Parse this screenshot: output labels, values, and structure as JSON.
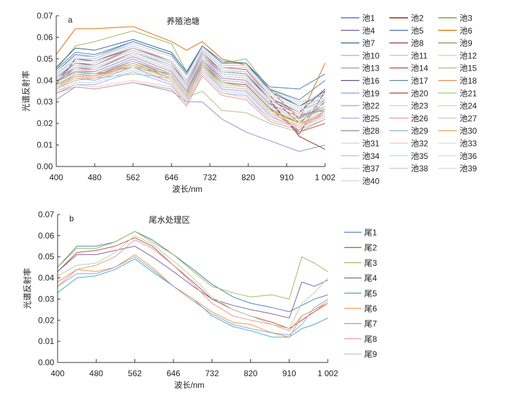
{
  "chart_data": [
    {
      "type": "line",
      "panel_label": "a",
      "title": "养殖池塘",
      "xlabel": "波长/nm",
      "ylabel": "光谱反射率",
      "x_ticks": [
        400,
        480,
        562,
        646,
        732,
        820,
        910,
        1002
      ],
      "x_tick_labels": [
        "400",
        "480",
        "562",
        "646",
        "732",
        "820",
        "910",
        "1 002"
      ],
      "y_ticks": [
        "0.00",
        "0.01",
        "0.02",
        "0.03",
        "0.04",
        "0.05",
        "0.06",
        "0.07"
      ],
      "ylim": [
        0,
        0.07
      ],
      "xlim": [
        400,
        1002
      ],
      "grid": false,
      "legend_placement": "right",
      "x": [
        400,
        440,
        480,
        562,
        646,
        680,
        715,
        760,
        815,
        870,
        940,
        1002
      ],
      "series": [
        {
          "name": "池1",
          "color": "#7F9ACB",
          "values": [
            0.031,
            0.037,
            0.036,
            0.039,
            0.035,
            0.03,
            0.03,
            0.022,
            0.016,
            0.012,
            0.007,
            0.01
          ]
        },
        {
          "name": "池2",
          "color": "#C0504D",
          "values": [
            0.042,
            0.048,
            0.047,
            0.055,
            0.049,
            0.04,
            0.054,
            0.046,
            0.045,
            0.033,
            0.02,
            0.03
          ]
        },
        {
          "name": "池3",
          "color": "#9BBB59",
          "values": [
            0.045,
            0.056,
            0.058,
            0.063,
            0.057,
            0.044,
            0.056,
            0.048,
            0.05,
            0.036,
            0.028,
            0.034
          ]
        },
        {
          "name": "池4",
          "color": "#8064A2",
          "values": [
            0.041,
            0.046,
            0.045,
            0.053,
            0.046,
            0.037,
            0.052,
            0.043,
            0.042,
            0.031,
            0.024,
            0.026
          ]
        },
        {
          "name": "池5",
          "color": "#4A7EBB",
          "values": [
            0.044,
            0.052,
            0.051,
            0.058,
            0.052,
            0.043,
            0.056,
            0.049,
            0.048,
            0.037,
            0.036,
            0.043
          ]
        },
        {
          "name": "池6",
          "color": "#E46C0A",
          "values": [
            0.052,
            0.064,
            0.064,
            0.065,
            0.058,
            0.054,
            0.058,
            0.05,
            0.047,
            0.036,
            0.022,
            0.048
          ]
        },
        {
          "name": "池7",
          "color": "#376092",
          "values": [
            0.046,
            0.055,
            0.054,
            0.059,
            0.053,
            0.044,
            0.056,
            0.048,
            0.048,
            0.035,
            0.028,
            0.035
          ]
        },
        {
          "name": "池8",
          "color": "#953735",
          "values": [
            0.038,
            0.05,
            0.049,
            0.055,
            0.048,
            0.038,
            0.053,
            0.044,
            0.043,
            0.031,
            0.014,
            0.008
          ]
        },
        {
          "name": "池9",
          "color": "#77933C",
          "values": [
            0.04,
            0.044,
            0.043,
            0.046,
            0.043,
            0.034,
            0.047,
            0.039,
            0.038,
            0.027,
            0.02,
            0.03
          ]
        },
        {
          "name": "池10",
          "color": "#B3A2C7",
          "values": [
            0.04,
            0.045,
            0.044,
            0.051,
            0.044,
            0.035,
            0.05,
            0.041,
            0.04,
            0.029,
            0.023,
            0.028
          ]
        },
        {
          "name": "池11",
          "color": "#A9C4DC",
          "values": [
            0.043,
            0.05,
            0.05,
            0.057,
            0.051,
            0.042,
            0.055,
            0.047,
            0.047,
            0.036,
            0.03,
            0.033
          ]
        },
        {
          "name": "池12",
          "color": "#FAC090",
          "values": [
            0.037,
            0.042,
            0.041,
            0.047,
            0.04,
            0.031,
            0.046,
            0.037,
            0.036,
            0.025,
            0.018,
            0.025
          ]
        },
        {
          "name": "池13",
          "color": "#8EA2C9",
          "values": [
            0.039,
            0.044,
            0.043,
            0.05,
            0.043,
            0.034,
            0.049,
            0.04,
            0.039,
            0.028,
            0.022,
            0.031
          ]
        },
        {
          "name": "池14",
          "color": "#B9555A",
          "values": [
            0.038,
            0.043,
            0.042,
            0.049,
            0.042,
            0.033,
            0.048,
            0.039,
            0.038,
            0.027,
            0.016,
            0.02
          ]
        },
        {
          "name": "池15",
          "color": "#A6C48A",
          "values": [
            0.036,
            0.04,
            0.041,
            0.043,
            0.041,
            0.032,
            0.035,
            0.026,
            0.025,
            0.02,
            0.016,
            0.022
          ]
        },
        {
          "name": "池16",
          "color": "#604A7B",
          "values": [
            0.041,
            0.048,
            0.047,
            0.054,
            0.047,
            0.038,
            0.052,
            0.044,
            0.043,
            0.032,
            0.025,
            0.036
          ]
        },
        {
          "name": "池17",
          "color": "#5A86A8",
          "values": [
            0.045,
            0.053,
            0.052,
            0.058,
            0.052,
            0.043,
            0.056,
            0.048,
            0.048,
            0.036,
            0.031,
            0.04
          ]
        },
        {
          "name": "池18",
          "color": "#E98A3E",
          "values": [
            0.038,
            0.042,
            0.041,
            0.048,
            0.041,
            0.032,
            0.047,
            0.038,
            0.037,
            0.026,
            0.02,
            0.024
          ]
        },
        {
          "name": "池19",
          "color": "#8FA5DE",
          "values": [
            0.036,
            0.041,
            0.04,
            0.046,
            0.039,
            0.03,
            0.045,
            0.036,
            0.035,
            0.024,
            0.017,
            0.026
          ]
        },
        {
          "name": "池20",
          "color": "#B34A48",
          "values": [
            0.039,
            0.046,
            0.045,
            0.052,
            0.045,
            0.036,
            0.05,
            0.042,
            0.041,
            0.03,
            0.015,
            0.035
          ]
        },
        {
          "name": "池21",
          "color": "#A9CB8E",
          "values": [
            0.037,
            0.043,
            0.042,
            0.048,
            0.042,
            0.033,
            0.047,
            0.039,
            0.037,
            0.026,
            0.021,
            0.027
          ]
        },
        {
          "name": "池22",
          "color": "#ABA2C8",
          "values": [
            0.04,
            0.045,
            0.045,
            0.052,
            0.045,
            0.036,
            0.051,
            0.042,
            0.041,
            0.03,
            0.024,
            0.029
          ]
        },
        {
          "name": "池23",
          "color": "#B7CFE6",
          "values": [
            0.042,
            0.048,
            0.048,
            0.055,
            0.048,
            0.039,
            0.053,
            0.045,
            0.044,
            0.033,
            0.027,
            0.032
          ]
        },
        {
          "name": "池24",
          "color": "#F8C29A",
          "values": [
            0.036,
            0.042,
            0.041,
            0.047,
            0.04,
            0.031,
            0.044,
            0.035,
            0.034,
            0.023,
            0.019,
            0.024
          ]
        },
        {
          "name": "池25",
          "color": "#9CB0E6",
          "values": [
            0.034,
            0.038,
            0.038,
            0.044,
            0.038,
            0.029,
            0.043,
            0.034,
            0.033,
            0.022,
            0.018,
            0.023
          ]
        },
        {
          "name": "池26",
          "color": "#E39A98",
          "values": [
            0.034,
            0.037,
            0.036,
            0.039,
            0.036,
            0.028,
            0.042,
            0.033,
            0.031,
            0.021,
            0.017,
            0.022
          ]
        },
        {
          "name": "池27",
          "color": "#BFD6A8",
          "values": [
            0.038,
            0.042,
            0.042,
            0.047,
            0.043,
            0.034,
            0.046,
            0.038,
            0.037,
            0.026,
            0.022,
            0.028
          ]
        },
        {
          "name": "池28",
          "color": "#9A90BE",
          "values": [
            0.039,
            0.044,
            0.044,
            0.051,
            0.044,
            0.035,
            0.049,
            0.041,
            0.04,
            0.029,
            0.023,
            0.027
          ]
        },
        {
          "name": "池29",
          "color": "#8FB8D6",
          "values": [
            0.041,
            0.047,
            0.046,
            0.053,
            0.047,
            0.038,
            0.052,
            0.044,
            0.043,
            0.032,
            0.026,
            0.031
          ]
        },
        {
          "name": "池30",
          "color": "#F5A66A",
          "values": [
            0.037,
            0.042,
            0.042,
            0.047,
            0.041,
            0.032,
            0.046,
            0.037,
            0.036,
            0.025,
            0.019,
            0.026
          ]
        },
        {
          "name": "池31",
          "color": "#C6D2F0",
          "values": [
            0.035,
            0.039,
            0.039,
            0.045,
            0.039,
            0.03,
            0.044,
            0.035,
            0.034,
            0.023,
            0.018,
            0.024
          ]
        },
        {
          "name": "池32",
          "color": "#EDC4C4",
          "values": [
            0.035,
            0.038,
            0.037,
            0.04,
            0.037,
            0.029,
            0.043,
            0.034,
            0.032,
            0.022,
            0.018,
            0.023
          ]
        },
        {
          "name": "池33",
          "color": "#D6E4CA",
          "values": [
            0.037,
            0.041,
            0.041,
            0.046,
            0.041,
            0.032,
            0.045,
            0.037,
            0.036,
            0.025,
            0.02,
            0.026
          ]
        },
        {
          "name": "池34",
          "color": "#C3C0DA",
          "values": [
            0.038,
            0.043,
            0.043,
            0.049,
            0.043,
            0.034,
            0.048,
            0.04,
            0.039,
            0.028,
            0.022,
            0.027
          ]
        },
        {
          "name": "池35",
          "color": "#BEDDE8",
          "values": [
            0.04,
            0.046,
            0.046,
            0.053,
            0.046,
            0.037,
            0.051,
            0.043,
            0.042,
            0.031,
            0.025,
            0.03
          ]
        },
        {
          "name": "池36",
          "color": "#F8D6C0",
          "values": [
            0.039,
            0.045,
            0.045,
            0.052,
            0.045,
            0.036,
            0.05,
            0.042,
            0.041,
            0.03,
            0.024,
            0.029
          ]
        },
        {
          "name": "池37",
          "color": "#CCC6E0",
          "values": [
            0.043,
            0.049,
            0.049,
            0.056,
            0.049,
            0.04,
            0.054,
            0.046,
            0.046,
            0.034,
            0.028,
            0.032
          ]
        },
        {
          "name": "池38",
          "color": "#E2BCC0",
          "values": [
            0.036,
            0.041,
            0.041,
            0.047,
            0.041,
            0.032,
            0.046,
            0.037,
            0.036,
            0.025,
            0.019,
            0.025
          ]
        },
        {
          "name": "池39",
          "color": "#D8D8C8",
          "values": [
            0.041,
            0.047,
            0.047,
            0.054,
            0.047,
            0.038,
            0.052,
            0.044,
            0.044,
            0.032,
            0.026,
            0.03
          ]
        },
        {
          "name": "池40",
          "color": "#CDD6E6",
          "values": [
            0.044,
            0.051,
            0.051,
            0.057,
            0.051,
            0.042,
            0.055,
            0.047,
            0.047,
            0.035,
            0.029,
            0.034
          ]
        }
      ]
    },
    {
      "type": "line",
      "panel_label": "b",
      "title": "尾水处理区",
      "xlabel": "波长/nm",
      "ylabel": "光谱反射率",
      "x_ticks": [
        400,
        480,
        562,
        646,
        732,
        820,
        910,
        1002
      ],
      "x_tick_labels": [
        "400",
        "480",
        "562",
        "646",
        "732",
        "820",
        "910",
        "1 002"
      ],
      "y_ticks": [
        "0.00",
        "0.01",
        "0.02",
        "0.03",
        "0.04",
        "0.05",
        "0.06",
        "0.07"
      ],
      "ylim": [
        0,
        0.07
      ],
      "xlim": [
        400,
        1002
      ],
      "grid": false,
      "legend_placement": "right",
      "x": [
        400,
        440,
        480,
        520,
        562,
        600,
        646,
        690,
        732,
        780,
        820,
        870,
        910,
        940,
        970,
        1002
      ],
      "series": [
        {
          "name": "尾1",
          "color": "#4F81BD",
          "values": [
            0.045,
            0.055,
            0.055,
            0.057,
            0.062,
            0.058,
            0.051,
            0.044,
            0.037,
            0.031,
            0.028,
            0.026,
            0.024,
            0.027,
            0.03,
            0.032
          ]
        },
        {
          "name": "尾2",
          "color": "#C0504D",
          "values": [
            0.043,
            0.052,
            0.053,
            0.055,
            0.059,
            0.055,
            0.046,
            0.038,
            0.03,
            0.025,
            0.022,
            0.019,
            0.016,
            0.02,
            0.024,
            0.028
          ]
        },
        {
          "name": "尾3",
          "color": "#9BBB59",
          "values": [
            0.045,
            0.054,
            0.054,
            0.057,
            0.062,
            0.057,
            0.051,
            0.043,
            0.036,
            0.033,
            0.031,
            0.032,
            0.03,
            0.05,
            0.047,
            0.043
          ]
        },
        {
          "name": "尾4",
          "color": "#8064A2",
          "values": [
            0.043,
            0.051,
            0.051,
            0.053,
            0.055,
            0.05,
            0.043,
            0.036,
            0.03,
            0.027,
            0.025,
            0.023,
            0.021,
            0.038,
            0.036,
            0.039
          ]
        },
        {
          "name": "尾5",
          "color": "#4BACC6",
          "values": [
            0.033,
            0.04,
            0.041,
            0.044,
            0.049,
            0.043,
            0.036,
            0.03,
            0.022,
            0.017,
            0.015,
            0.012,
            0.012,
            0.016,
            0.018,
            0.021
          ]
        },
        {
          "name": "尾6",
          "color": "#F79646",
          "values": [
            0.038,
            0.044,
            0.043,
            0.045,
            0.051,
            0.045,
            0.036,
            0.03,
            0.024,
            0.019,
            0.018,
            0.014,
            0.012,
            0.022,
            0.025,
            0.029
          ]
        },
        {
          "name": "尾7",
          "color": "#8FA5DE",
          "values": [
            0.036,
            0.042,
            0.042,
            0.045,
            0.05,
            0.044,
            0.036,
            0.029,
            0.023,
            0.018,
            0.016,
            0.014,
            0.013,
            0.018,
            0.026,
            0.03
          ]
        },
        {
          "name": "尾8",
          "color": "#E39A98",
          "values": [
            0.036,
            0.044,
            0.046,
            0.05,
            0.058,
            0.054,
            0.046,
            0.037,
            0.028,
            0.022,
            0.02,
            0.018,
            0.015,
            0.022,
            0.025,
            0.028
          ]
        },
        {
          "name": "尾9",
          "color": "#B5D5A0",
          "values": [
            0.041,
            0.046,
            0.047,
            0.052,
            0.06,
            0.056,
            0.048,
            0.04,
            0.031,
            0.025,
            0.022,
            0.018,
            0.016,
            0.028,
            0.033,
            0.04
          ]
        }
      ]
    }
  ]
}
